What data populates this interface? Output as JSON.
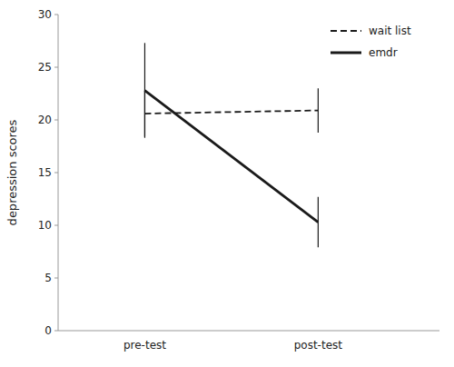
{
  "chart_data": {
    "type": "line",
    "categories": [
      "pre-test",
      "post-test"
    ],
    "series": [
      {
        "name": "wait list",
        "color": "#1a1a1a",
        "line_style": "dashed",
        "values": [
          20.6,
          20.9
        ],
        "errors": [
          2.2,
          2.1
        ]
      },
      {
        "name": "emdr",
        "color": "#1a1a1a",
        "line_style": "solid",
        "values": [
          22.8,
          10.3
        ],
        "errors": [
          4.5,
          2.4
        ]
      }
    ],
    "ylabel": "depression scores",
    "ylim": [
      0,
      30
    ],
    "yticks": [
      0,
      5,
      10,
      15,
      20,
      25,
      30
    ],
    "grid": false,
    "legend": "upper right"
  }
}
